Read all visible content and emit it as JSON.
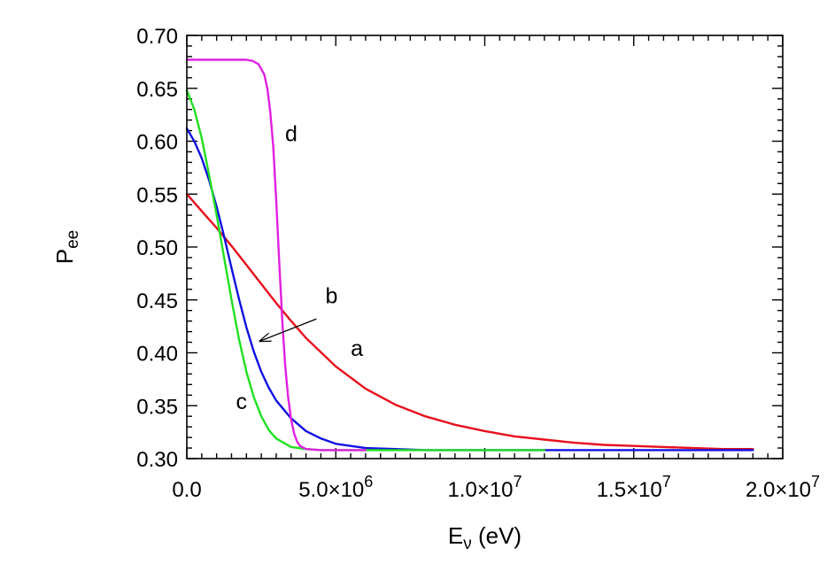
{
  "chart_data": {
    "type": "line",
    "xlabel": {
      "main": "E",
      "sub": "ν",
      "unit": " (eV)"
    },
    "ylabel": {
      "main": "P",
      "sub": "ee"
    },
    "xlim": [
      0,
      20000000
    ],
    "ylim": [
      0.3,
      0.7
    ],
    "x_ticks": [
      {
        "value": 0,
        "mantissa": "0.0",
        "exp": ""
      },
      {
        "value": 5000000,
        "mantissa": "5.0×10",
        "exp": "6"
      },
      {
        "value": 10000000,
        "mantissa": "1.0×10",
        "exp": "7"
      },
      {
        "value": 15000000,
        "mantissa": "1.5×10",
        "exp": "7"
      },
      {
        "value": 20000000,
        "mantissa": "2.0×10",
        "exp": "7"
      }
    ],
    "y_ticks": [
      {
        "value": 0.3,
        "label": "0.30"
      },
      {
        "value": 0.35,
        "label": "0.35"
      },
      {
        "value": 0.4,
        "label": "0.40"
      },
      {
        "value": 0.45,
        "label": "0.45"
      },
      {
        "value": 0.5,
        "label": "0.50"
      },
      {
        "value": 0.55,
        "label": "0.55"
      },
      {
        "value": 0.6,
        "label": "0.60"
      },
      {
        "value": 0.65,
        "label": "0.65"
      },
      {
        "value": 0.7,
        "label": "0.70"
      }
    ],
    "grid": false,
    "legend": "none",
    "series": [
      {
        "name": "a",
        "color": "#e8101c",
        "x": [
          0,
          500000,
          1000000,
          1500000,
          2000000,
          2500000,
          3000000,
          3500000,
          4000000,
          5000000,
          6000000,
          7000000,
          8000000,
          9000000,
          10000000,
          11000000,
          12000000,
          13000000,
          14000000,
          15000000,
          16000000,
          17000000,
          18000000,
          19000000
        ],
        "y": [
          0.55,
          0.534,
          0.518,
          0.501,
          0.483,
          0.465,
          0.447,
          0.43,
          0.414,
          0.387,
          0.366,
          0.351,
          0.34,
          0.332,
          0.326,
          0.321,
          0.318,
          0.315,
          0.313,
          0.312,
          0.311,
          0.31,
          0.309,
          0.309
        ]
      },
      {
        "name": "b",
        "color": "#1010e0",
        "x": [
          0,
          250000,
          500000,
          750000,
          1000000,
          1250000,
          1500000,
          1750000,
          2000000,
          2250000,
          2500000,
          2750000,
          3000000,
          3500000,
          4000000,
          4500000,
          5000000,
          6000000,
          7000000,
          8000000,
          10000000,
          13000000,
          16000000,
          19000000
        ],
        "y": [
          0.612,
          0.6,
          0.584,
          0.563,
          0.538,
          0.51,
          0.48,
          0.451,
          0.424,
          0.401,
          0.382,
          0.367,
          0.355,
          0.338,
          0.326,
          0.319,
          0.314,
          0.31,
          0.309,
          0.308,
          0.308,
          0.308,
          0.308,
          0.308
        ]
      },
      {
        "name": "c",
        "color": "#20e020",
        "x": [
          0,
          250000,
          500000,
          750000,
          1000000,
          1250000,
          1500000,
          1750000,
          2000000,
          2250000,
          2500000,
          2750000,
          3000000,
          3500000,
          4000000,
          4500000,
          5000000,
          6000000,
          8000000,
          10000000,
          12000000
        ],
        "y": [
          0.648,
          0.63,
          0.603,
          0.568,
          0.53,
          0.49,
          0.45,
          0.413,
          0.382,
          0.358,
          0.34,
          0.327,
          0.319,
          0.311,
          0.309,
          0.308,
          0.308,
          0.308,
          0.308,
          0.308,
          0.308
        ]
      },
      {
        "name": "d",
        "color": "#e020e0",
        "x": [
          0,
          1000000,
          2000000,
          2200000,
          2400000,
          2600000,
          2700000,
          2800000,
          2900000,
          3000000,
          3100000,
          3200000,
          3300000,
          3400000,
          3500000,
          3600000,
          3700000,
          3800000,
          4000000,
          4500000,
          5000000,
          6000000
        ],
        "y": [
          0.677,
          0.677,
          0.677,
          0.676,
          0.673,
          0.663,
          0.65,
          0.628,
          0.595,
          0.545,
          0.487,
          0.432,
          0.389,
          0.358,
          0.337,
          0.324,
          0.316,
          0.312,
          0.309,
          0.308,
          0.308,
          0.308
        ]
      }
    ],
    "annotations": [
      {
        "text": "a",
        "x": 5500000,
        "y": 0.397
      },
      {
        "text": "b",
        "x": 4650000,
        "y": 0.447
      },
      {
        "text": "c",
        "x": 1650000,
        "y": 0.347
      },
      {
        "text": "d",
        "x": 3300000,
        "y": 0.6
      }
    ],
    "arrow": {
      "from": [
        4350000,
        0.432
      ],
      "to": [
        2450000,
        0.411
      ]
    }
  }
}
